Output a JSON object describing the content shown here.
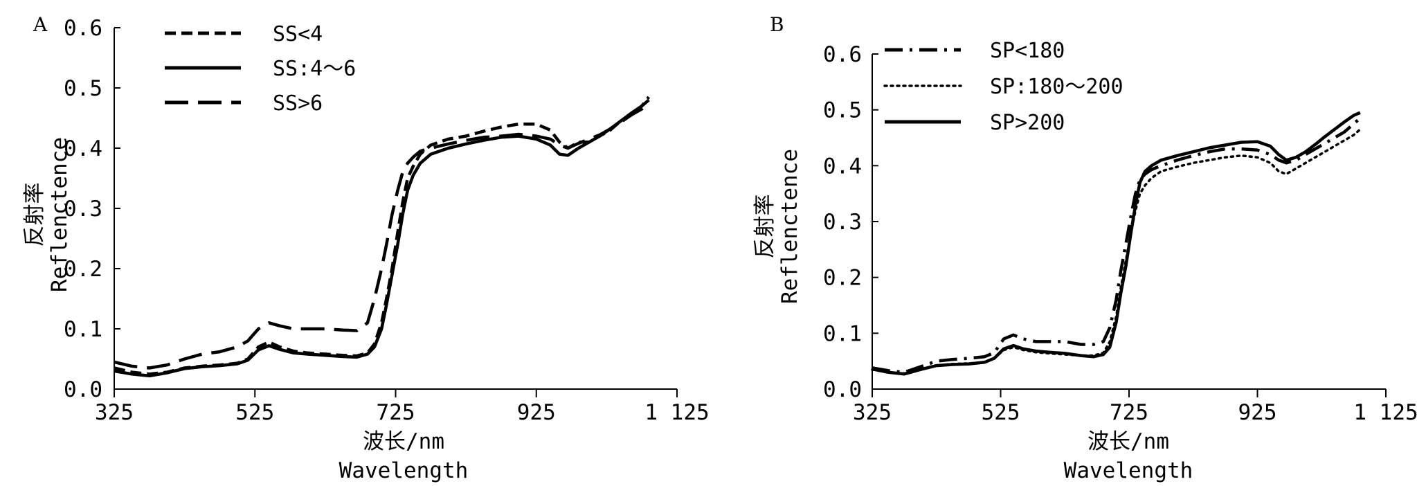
{
  "chart_data": [
    {
      "type": "line",
      "panel": "A",
      "xlabel": [
        "波长/nm",
        "Wavelength"
      ],
      "ylabel": [
        "反射率",
        "Reflenctence"
      ],
      "xlim": [
        325,
        1125
      ],
      "ylim": [
        0,
        0.6
      ],
      "xticks": [
        325,
        525,
        725,
        925,
        1125
      ],
      "xtick_labels": [
        "325",
        "525",
        "725",
        "925",
        "1 125"
      ],
      "yticks": [
        0,
        0.1,
        0.2,
        0.3,
        0.4,
        0.5,
        0.6
      ],
      "ytick_labels": [
        "0.0",
        "0.1",
        "0.2",
        "0.3",
        "0.4",
        "0.5",
        "0.6"
      ],
      "grid": false,
      "legend_position": "top-left",
      "series": [
        {
          "name": "SS<4",
          "dash": "dashed",
          "x": [
            325,
            350,
            375,
            400,
            425,
            450,
            475,
            500,
            515,
            530,
            545,
            560,
            580,
            600,
            625,
            650,
            670,
            685,
            695,
            705,
            712,
            720,
            728,
            735,
            742,
            750,
            760,
            775,
            800,
            825,
            850,
            875,
            900,
            925,
            945,
            958,
            970,
            985,
            1000,
            1015,
            1030,
            1045,
            1060,
            1075,
            1085
          ],
          "y": [
            0.035,
            0.028,
            0.025,
            0.028,
            0.035,
            0.038,
            0.04,
            0.043,
            0.05,
            0.07,
            0.078,
            0.07,
            0.063,
            0.06,
            0.058,
            0.056,
            0.055,
            0.06,
            0.075,
            0.11,
            0.15,
            0.2,
            0.26,
            0.31,
            0.35,
            0.37,
            0.39,
            0.405,
            0.415,
            0.42,
            0.428,
            0.435,
            0.44,
            0.44,
            0.43,
            0.41,
            0.4,
            0.41,
            0.41,
            0.42,
            0.43,
            0.445,
            0.455,
            0.47,
            0.485
          ]
        },
        {
          "name": "SS:4～6",
          "dash": "solid",
          "x": [
            325,
            350,
            375,
            400,
            425,
            450,
            475,
            500,
            515,
            530,
            545,
            560,
            580,
            600,
            625,
            650,
            670,
            685,
            695,
            705,
            712,
            720,
            728,
            735,
            742,
            750,
            760,
            775,
            800,
            825,
            850,
            875,
            900,
            925,
            945,
            958,
            970,
            985,
            1000,
            1015,
            1030,
            1045,
            1060,
            1075,
            1085
          ],
          "y": [
            0.03,
            0.025,
            0.022,
            0.027,
            0.034,
            0.037,
            0.039,
            0.042,
            0.048,
            0.065,
            0.072,
            0.066,
            0.06,
            0.058,
            0.056,
            0.054,
            0.053,
            0.058,
            0.07,
            0.1,
            0.14,
            0.19,
            0.24,
            0.29,
            0.33,
            0.355,
            0.375,
            0.39,
            0.4,
            0.407,
            0.413,
            0.418,
            0.42,
            0.415,
            0.405,
            0.39,
            0.388,
            0.4,
            0.41,
            0.42,
            0.432,
            0.445,
            0.458,
            0.47,
            0.48
          ]
        },
        {
          "name": "SS>6",
          "dash": "long-dash",
          "x": [
            325,
            350,
            375,
            400,
            425,
            450,
            475,
            500,
            515,
            530,
            545,
            560,
            580,
            600,
            625,
            650,
            670,
            685,
            695,
            705,
            712,
            720,
            728,
            735,
            742,
            750,
            760,
            775,
            800,
            825,
            850,
            875,
            900,
            925,
            945,
            958,
            970,
            985,
            1000,
            1015,
            1030,
            1045,
            1060,
            1075,
            1085
          ],
          "y": [
            0.045,
            0.038,
            0.035,
            0.04,
            0.05,
            0.058,
            0.062,
            0.07,
            0.08,
            0.1,
            0.11,
            0.105,
            0.1,
            0.1,
            0.1,
            0.098,
            0.097,
            0.11,
            0.15,
            0.2,
            0.24,
            0.29,
            0.33,
            0.36,
            0.375,
            0.385,
            0.395,
            0.4,
            0.407,
            0.413,
            0.418,
            0.42,
            0.423,
            0.42,
            0.415,
            0.405,
            0.4,
            0.408,
            0.415,
            0.422,
            0.432,
            0.443,
            0.455,
            0.465,
            0.475
          ]
        }
      ]
    },
    {
      "type": "line",
      "panel": "B",
      "xlabel": [
        "波长/nm",
        "Wavelength"
      ],
      "ylabel": [
        "反射率",
        "Reflenctence"
      ],
      "xlim": [
        325,
        1125
      ],
      "ylim": [
        0,
        0.6
      ],
      "xticks": [
        325,
        525,
        725,
        925,
        1125
      ],
      "xtick_labels": [
        "325",
        "525",
        "725",
        "925",
        "1 125"
      ],
      "yticks": [
        0,
        0.1,
        0.2,
        0.3,
        0.4,
        0.5,
        0.6
      ],
      "ytick_labels": [
        "0.0",
        "0.1",
        "0.2",
        "0.3",
        "0.4",
        "0.5",
        "0.6"
      ],
      "grid": false,
      "legend_position": "top-left",
      "series": [
        {
          "name": "SP<180",
          "dash": "dash-dot",
          "x": [
            325,
            350,
            375,
            400,
            425,
            450,
            475,
            500,
            515,
            530,
            545,
            560,
            580,
            600,
            625,
            650,
            670,
            685,
            695,
            705,
            712,
            720,
            728,
            735,
            742,
            750,
            760,
            775,
            800,
            825,
            850,
            875,
            900,
            925,
            945,
            958,
            970,
            985,
            1000,
            1015,
            1030,
            1045,
            1060,
            1075,
            1085
          ],
          "y": [
            0.038,
            0.033,
            0.03,
            0.04,
            0.05,
            0.053,
            0.055,
            0.058,
            0.065,
            0.09,
            0.097,
            0.09,
            0.085,
            0.085,
            0.085,
            0.08,
            0.08,
            0.085,
            0.11,
            0.16,
            0.21,
            0.26,
            0.31,
            0.35,
            0.375,
            0.385,
            0.393,
            0.4,
            0.41,
            0.418,
            0.425,
            0.43,
            0.43,
            0.428,
            0.42,
            0.41,
            0.405,
            0.41,
            0.42,
            0.43,
            0.44,
            0.45,
            0.46,
            0.475,
            0.485
          ]
        },
        {
          "name": "SP:180～200",
          "dash": "dotted",
          "x": [
            325,
            350,
            375,
            400,
            425,
            450,
            475,
            500,
            515,
            530,
            545,
            560,
            580,
            600,
            625,
            650,
            670,
            685,
            695,
            705,
            712,
            720,
            728,
            735,
            742,
            750,
            760,
            775,
            800,
            825,
            850,
            875,
            900,
            925,
            945,
            958,
            970,
            985,
            1000,
            1015,
            1030,
            1045,
            1060,
            1075,
            1085
          ],
          "y": [
            0.035,
            0.03,
            0.028,
            0.035,
            0.042,
            0.045,
            0.046,
            0.048,
            0.055,
            0.07,
            0.075,
            0.07,
            0.066,
            0.064,
            0.062,
            0.06,
            0.06,
            0.065,
            0.085,
            0.13,
            0.18,
            0.23,
            0.28,
            0.32,
            0.35,
            0.365,
            0.378,
            0.39,
            0.398,
            0.405,
            0.41,
            0.415,
            0.418,
            0.415,
            0.405,
            0.39,
            0.385,
            0.395,
            0.405,
            0.415,
            0.425,
            0.435,
            0.445,
            0.455,
            0.465
          ]
        },
        {
          "name": "SP>200",
          "dash": "solid",
          "x": [
            325,
            350,
            375,
            400,
            425,
            450,
            475,
            500,
            515,
            530,
            545,
            560,
            580,
            600,
            625,
            650,
            670,
            685,
            695,
            705,
            712,
            720,
            728,
            735,
            742,
            750,
            760,
            775,
            800,
            825,
            850,
            875,
            900,
            925,
            945,
            958,
            970,
            985,
            1000,
            1015,
            1030,
            1045,
            1060,
            1075,
            1085
          ],
          "y": [
            0.036,
            0.03,
            0.027,
            0.035,
            0.042,
            0.044,
            0.045,
            0.048,
            0.055,
            0.072,
            0.078,
            0.072,
            0.068,
            0.066,
            0.064,
            0.06,
            0.058,
            0.062,
            0.075,
            0.12,
            0.17,
            0.22,
            0.28,
            0.33,
            0.37,
            0.39,
            0.4,
            0.41,
            0.418,
            0.425,
            0.432,
            0.437,
            0.442,
            0.443,
            0.435,
            0.42,
            0.41,
            0.415,
            0.425,
            0.438,
            0.452,
            0.465,
            0.478,
            0.49,
            0.495
          ]
        }
      ]
    }
  ]
}
